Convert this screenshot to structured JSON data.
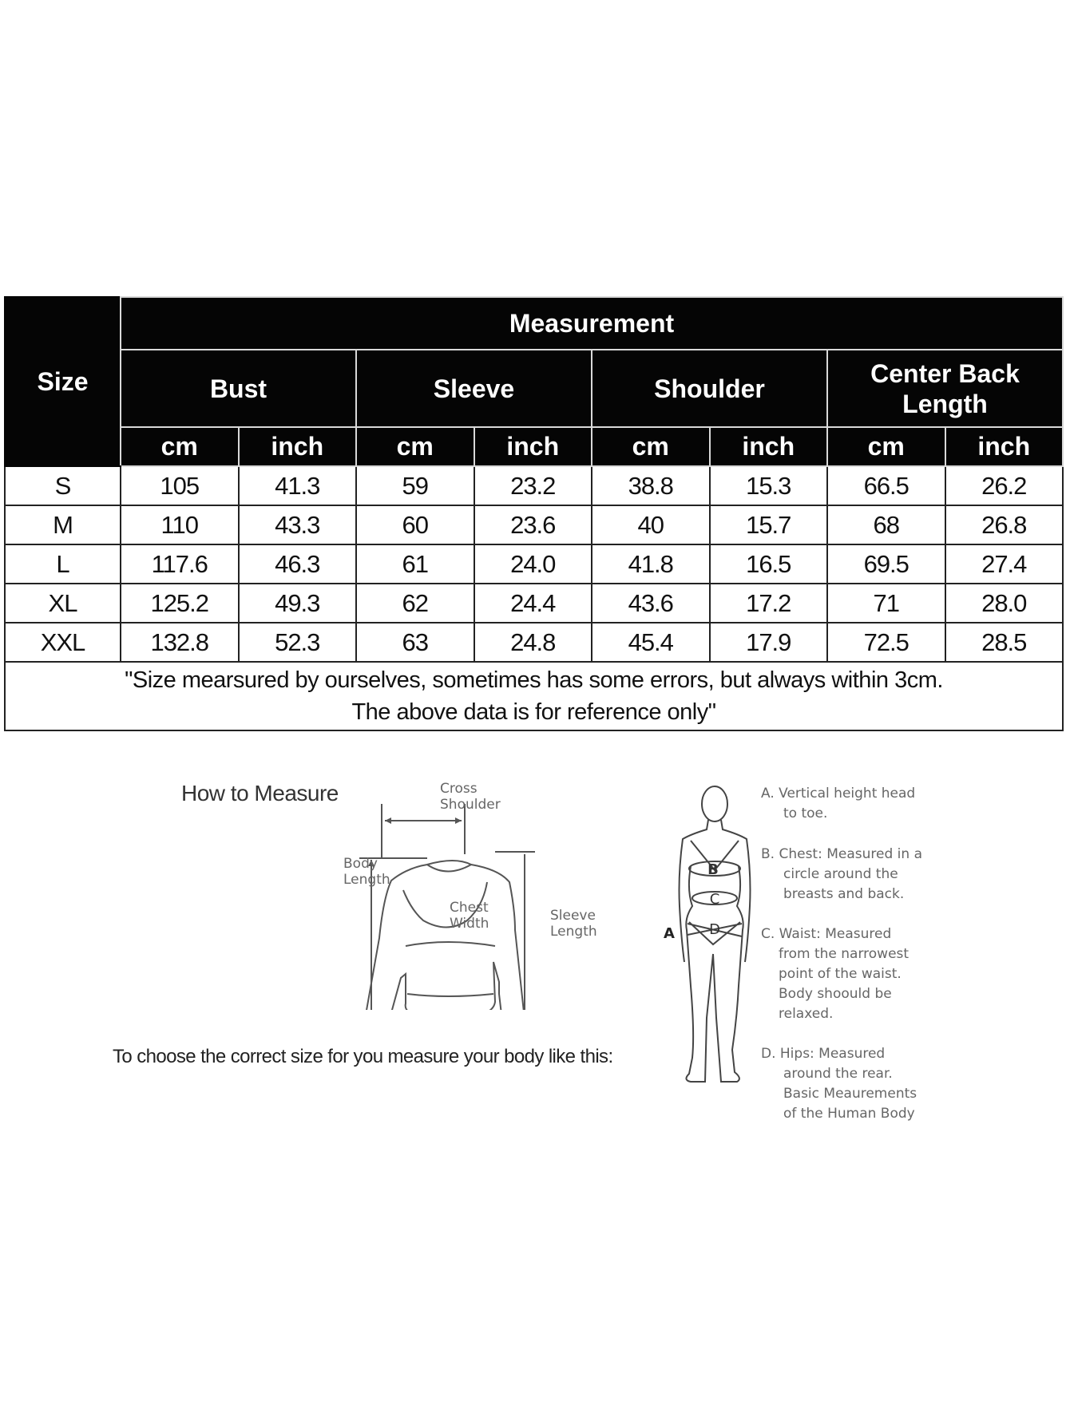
{
  "table": {
    "size_header": "Size",
    "measurement_header": "Measurement",
    "groups": [
      "Bust",
      "Sleeve",
      "Shoulder",
      "Center Back Length"
    ],
    "units": [
      "cm",
      "inch",
      "cm",
      "inch",
      "cm",
      "inch",
      "cm",
      "inch"
    ],
    "rows": [
      [
        "S",
        "105",
        "41.3",
        "59",
        "23.2",
        "38.8",
        "15.3",
        "66.5",
        "26.2"
      ],
      [
        "M",
        "110",
        "43.3",
        "60",
        "23.6",
        "40",
        "15.7",
        "68",
        "26.8"
      ],
      [
        "L",
        "117.6",
        "46.3",
        "61",
        "24.0",
        "41.8",
        "16.5",
        "69.5",
        "27.4"
      ],
      [
        "XL",
        "125.2",
        "49.3",
        "62",
        "24.4",
        "43.6",
        "17.2",
        "71",
        "28.0"
      ],
      [
        "XXL",
        "132.8",
        "52.3",
        "63",
        "24.8",
        "45.4",
        "17.9",
        "72.5",
        "28.5"
      ]
    ],
    "note_line1": "\"Size mearsured by ourselves, sometimes has some errors, but always within 3cm.",
    "note_line2": "The above data is for reference only\""
  },
  "guide": {
    "title": "How to Measure",
    "instruction": "To choose the correct size for you measure your body like this:",
    "sweater_labels": {
      "cross_shoulder_1": "Cross",
      "cross_shoulder_2": "Shoulder",
      "body_length_1": "Body",
      "body_length_2": "Length",
      "chest_width_1": "Chest",
      "chest_width_2": "Width",
      "sleeve_length_1": "Sleeve",
      "sleeve_length_2": "Length"
    },
    "body_labels": {
      "a": "A",
      "b": "B",
      "c": "C",
      "d": "D"
    },
    "descriptions": {
      "a": [
        "A. Vertical height head",
        "to toe."
      ],
      "b": [
        "B. Chest: Measured in a",
        "circle around the",
        "breasts and back."
      ],
      "c": [
        "C. Waist: Measured",
        "from the narrowest",
        "point of the waist.",
        "Body shoould be",
        "relaxed."
      ],
      "d": [
        "D. Hips: Measured",
        "around the rear.",
        "Basic Meaurements",
        "of the Human Body"
      ]
    }
  }
}
